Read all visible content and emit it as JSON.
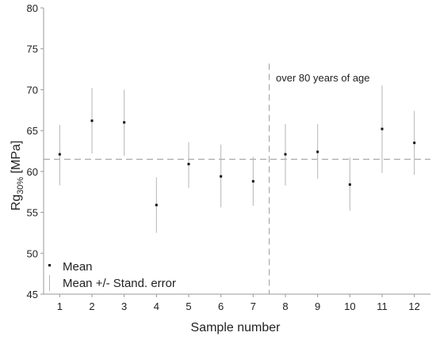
{
  "chart_data": {
    "type": "scatter",
    "xlabel": "Sample number",
    "ylabel_main": "Rg",
    "ylabel_sub": "30%",
    "ylabel_unit": " [MPa]",
    "ylim": [
      45,
      80
    ],
    "xlim": [
      0.5,
      12.5
    ],
    "yticks": [
      45,
      50,
      55,
      60,
      65,
      70,
      75,
      80
    ],
    "xticks": [
      1,
      2,
      3,
      4,
      5,
      6,
      7,
      8,
      9,
      10,
      11,
      12
    ],
    "grid": false,
    "reference_line_y": 61.5,
    "vertical_divider_x": 7.5,
    "annotation": "over 80 years of age",
    "legend_position": "bottom-left",
    "legend": {
      "mean": "Mean",
      "error": "Mean +/- Stand. error"
    },
    "series": [
      {
        "name": "Mean",
        "x": [
          1,
          2,
          3,
          4,
          5,
          6,
          7,
          8,
          9,
          10,
          11,
          12
        ],
        "values": [
          62.1,
          66.2,
          66.0,
          55.9,
          60.9,
          59.4,
          58.8,
          62.1,
          62.4,
          58.4,
          65.2,
          63.5
        ]
      },
      {
        "name": "Mean +/- Stand. error",
        "x": [
          1,
          2,
          3,
          4,
          5,
          6,
          7,
          8,
          9,
          10,
          11,
          12
        ],
        "lower": [
          58.3,
          62.2,
          61.9,
          52.5,
          58.0,
          55.6,
          55.8,
          58.3,
          59.1,
          55.2,
          59.8,
          59.6
        ],
        "upper": [
          65.7,
          70.2,
          70.0,
          59.3,
          63.6,
          63.3,
          61.8,
          65.8,
          65.8,
          61.7,
          70.5,
          67.4
        ]
      }
    ]
  }
}
